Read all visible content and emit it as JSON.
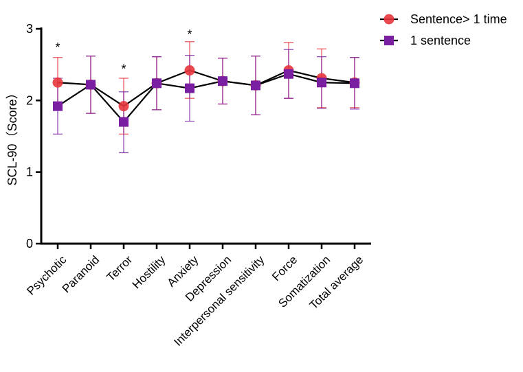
{
  "chart_data": {
    "type": "line",
    "title": "",
    "xlabel": "",
    "ylabel": "SCL-90（Score）",
    "ylim": [
      0,
      3
    ],
    "yticks": [
      0,
      1,
      2,
      3
    ],
    "grid": false,
    "legend_position": "top-right",
    "categories": [
      "Psychotic",
      "Paranoid",
      "Terror",
      "Hostility",
      "Anxiety",
      "Depression",
      "Interpersonal sensitivity",
      "Force",
      "Somatization",
      "Total average"
    ],
    "series": [
      {
        "name": "Sentence> 1 time",
        "marker": "circle",
        "color": "#e8363c",
        "values": [
          2.25,
          2.22,
          1.92,
          2.24,
          2.42,
          2.27,
          2.21,
          2.42,
          2.31,
          2.25
        ],
        "error_upper": [
          2.6,
          2.62,
          2.31,
          2.61,
          2.82,
          2.59,
          2.62,
          2.81,
          2.72,
          2.6
        ],
        "error_lower": [
          1.9,
          1.82,
          1.53,
          1.87,
          2.03,
          1.95,
          1.8,
          2.03,
          1.9,
          1.9
        ]
      },
      {
        "name": "1 sentence",
        "marker": "square",
        "color": "#7a1fa2",
        "values": [
          1.92,
          2.22,
          1.7,
          2.24,
          2.17,
          2.27,
          2.21,
          2.37,
          2.25,
          2.24
        ],
        "error_upper": [
          2.31,
          2.62,
          2.12,
          2.61,
          2.63,
          2.59,
          2.62,
          2.71,
          2.61,
          2.6
        ],
        "error_lower": [
          1.53,
          1.82,
          1.27,
          1.87,
          1.71,
          1.95,
          1.8,
          2.03,
          1.89,
          1.88
        ]
      }
    ],
    "annotations": [
      {
        "category": "Psychotic",
        "text": "*",
        "y": 2.78
      },
      {
        "category": "Terror",
        "text": "*",
        "y": 2.48
      },
      {
        "category": "Anxiety",
        "text": "*",
        "y": 2.96
      }
    ]
  }
}
